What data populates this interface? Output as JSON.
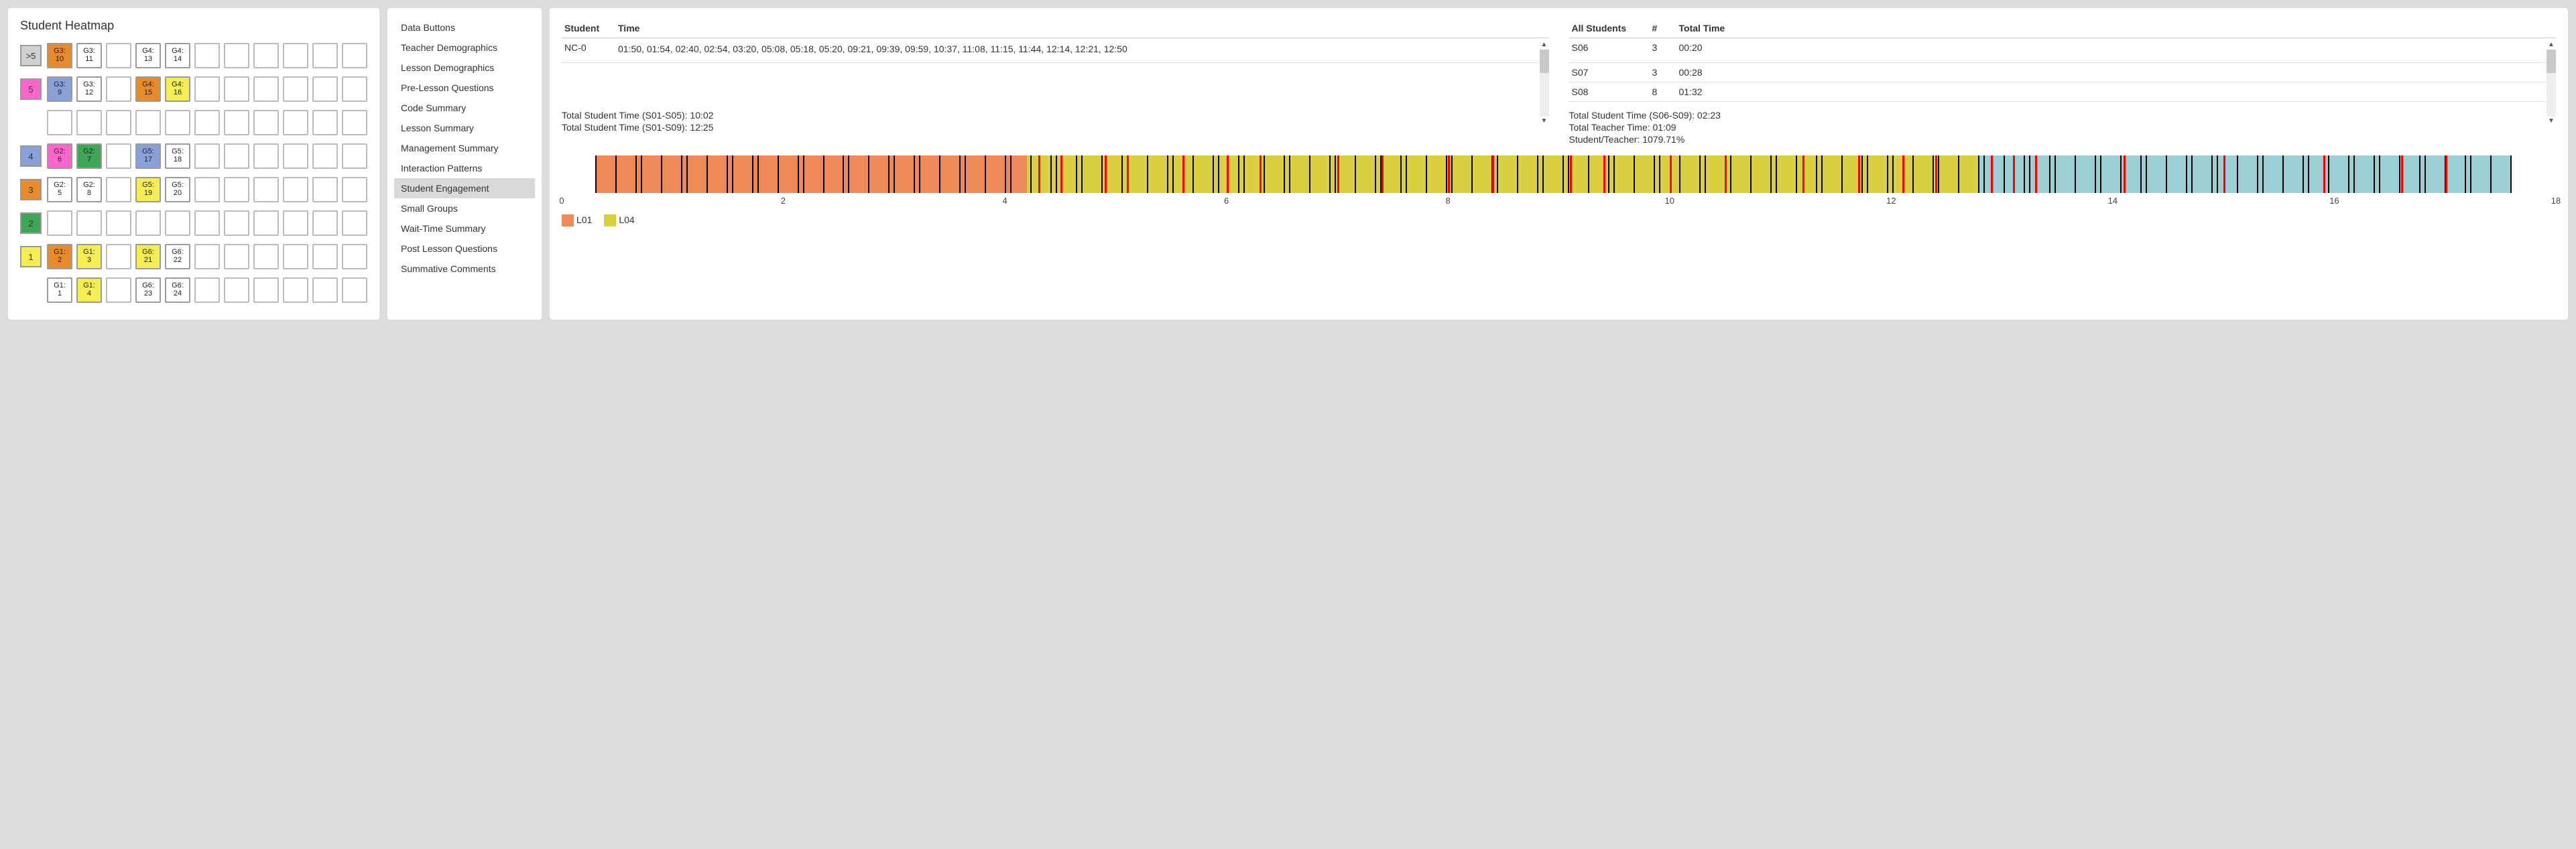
{
  "heatmap": {
    "title": "Student Heatmap",
    "axis_colors": {
      ">5": "#d0d0d0",
      "5": "#ff66cc",
      "4": "#8aa0d8",
      "3": "#e88a2a",
      "2": "#3fa557",
      "1": "#f4ee52"
    },
    "cols": 11,
    "rows": [
      {
        "axis": ">5",
        "cells": [
          {
            "l1": "G3:",
            "l2": "10",
            "bg": "#e88a2a"
          },
          {
            "l1": "G3:",
            "l2": "11",
            "bg": "#ffffff"
          },
          null,
          {
            "l1": "G4:",
            "l2": "13",
            "bg": "#ffffff"
          },
          {
            "l1": "G4:",
            "l2": "14",
            "bg": "#ffffff"
          },
          null,
          null,
          null,
          null,
          null,
          null
        ]
      },
      {
        "axis": "5",
        "cells": [
          {
            "l1": "G3:",
            "l2": "9",
            "bg": "#8aa0d8"
          },
          {
            "l1": "G3:",
            "l2": "12",
            "bg": "#ffffff"
          },
          null,
          {
            "l1": "G4:",
            "l2": "15",
            "bg": "#e88a2a"
          },
          {
            "l1": "G4:",
            "l2": "16",
            "bg": "#f4ee52"
          },
          null,
          null,
          null,
          null,
          null,
          null
        ]
      },
      {
        "axis": null,
        "cells": [
          null,
          null,
          null,
          null,
          null,
          null,
          null,
          null,
          null,
          null,
          null
        ]
      },
      {
        "axis": "4",
        "cells": [
          {
            "l1": "G2:",
            "l2": "6",
            "bg": "#ff66cc"
          },
          {
            "l1": "G2:",
            "l2": "7",
            "bg": "#3fa557"
          },
          null,
          {
            "l1": "G5:",
            "l2": "17",
            "bg": "#8aa0d8"
          },
          {
            "l1": "G5:",
            "l2": "18",
            "bg": "#ffffff"
          },
          null,
          null,
          null,
          null,
          null,
          null
        ]
      },
      {
        "axis": "3",
        "cells": [
          {
            "l1": "G2:",
            "l2": "5",
            "bg": "#ffffff"
          },
          {
            "l1": "G2:",
            "l2": "8",
            "bg": "#ffffff"
          },
          null,
          {
            "l1": "G5:",
            "l2": "19",
            "bg": "#f4ee52"
          },
          {
            "l1": "G5:",
            "l2": "20",
            "bg": "#ffffff"
          },
          null,
          null,
          null,
          null,
          null,
          null
        ]
      },
      {
        "axis": "2",
        "cells": [
          null,
          null,
          null,
          null,
          null,
          null,
          null,
          null,
          null,
          null,
          null
        ]
      },
      {
        "axis": "1",
        "cells": [
          {
            "l1": "G1:",
            "l2": "2",
            "bg": "#e88a2a"
          },
          {
            "l1": "G1:",
            "l2": "3",
            "bg": "#f4ee52"
          },
          null,
          {
            "l1": "G6:",
            "l2": "21",
            "bg": "#f4ee52"
          },
          {
            "l1": "G6:",
            "l2": "22",
            "bg": "#ffffff"
          },
          null,
          null,
          null,
          null,
          null,
          null
        ]
      },
      {
        "axis": null,
        "cells": [
          {
            "l1": "G1:",
            "l2": "1",
            "bg": "#ffffff"
          },
          {
            "l1": "G1:",
            "l2": "4",
            "bg": "#f4ee52"
          },
          null,
          {
            "l1": "G6:",
            "l2": "23",
            "bg": "#ffffff"
          },
          {
            "l1": "G6:",
            "l2": "24",
            "bg": "#ffffff"
          },
          null,
          null,
          null,
          null,
          null,
          null
        ]
      }
    ]
  },
  "nav": {
    "items": [
      "Data Buttons",
      "Teacher Demographics",
      "Lesson Demographics",
      "Pre-Lesson Questions",
      "Code Summary",
      "Lesson Summary",
      "Management Summary",
      "Interaction Patterns",
      "Student Engagement",
      "Small Groups",
      "Wait-Time Summary",
      "Post Lesson Questions",
      "Summative Comments"
    ],
    "active_index": 8
  },
  "tableA": {
    "headers": [
      "Student",
      "Time"
    ],
    "rows": [
      {
        "student": "NC-0",
        "time": "01:50, 01:54, 02:40, 02:54, 03:20, 05:08, 05:18, 05:20, 09:21, 09:39, 09:59, 10:37, 11:08, 11:15, 11:44, 12:14, 12:21, 12:50"
      }
    ]
  },
  "tableB": {
    "headers": [
      "All Students",
      "#",
      "Total Time"
    ],
    "rows": [
      {
        "student": "S06",
        "count": "3",
        "time": "00:20"
      },
      {
        "student": "S07",
        "count": "3",
        "time": "00:28"
      },
      {
        "student": "S08",
        "count": "8",
        "time": "01:32"
      }
    ]
  },
  "totals": {
    "left": [
      "Total Student Time (S01-S05): 10:02",
      "Total Student Time (S01-S09): 12:25"
    ],
    "right": [
      "Total Student Time (S06-S09): 02:23",
      "Total Teacher Time: 01:09",
      "Student/Teacher: 1079.71%"
    ]
  },
  "timeline": {
    "domain": [
      0,
      18
    ],
    "ticks": [
      0,
      2,
      4,
      6,
      8,
      10,
      12,
      14,
      16,
      18
    ],
    "regions": [
      {
        "from": 0.3,
        "to": 4.2,
        "color": "#ef8a58"
      },
      {
        "from": 4.2,
        "to": 12.8,
        "color": "#d9cf3f"
      },
      {
        "from": 12.8,
        "to": 17.6,
        "color": "#9ad0d3"
      }
    ],
    "red_bars": [
      4.3,
      4.5,
      4.9,
      5.1,
      5.6,
      6.0,
      6.3,
      7.0,
      7.4,
      8.0,
      8.4,
      9.1,
      9.4,
      10.0,
      10.5,
      11.2,
      11.7,
      12.1,
      12.4,
      12.9,
      13.1,
      13.3,
      14.1,
      15.0,
      15.9,
      16.6,
      17.0
    ],
    "black_bar_density": 130,
    "legend": [
      {
        "label": "L01",
        "color": "#ef8a58"
      },
      {
        "label": "L04",
        "color": "#d9cf3f"
      }
    ]
  }
}
